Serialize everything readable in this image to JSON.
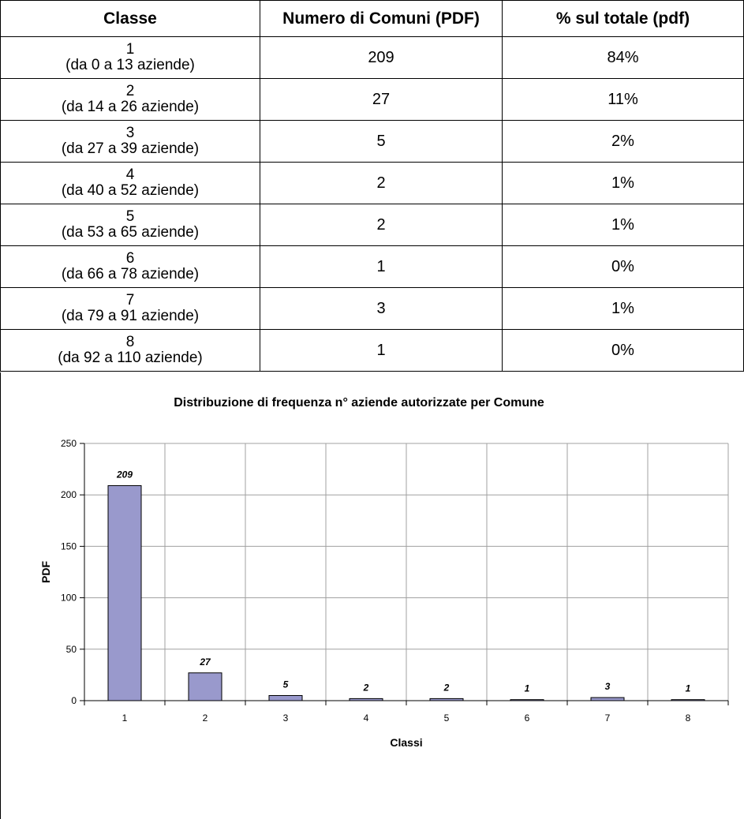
{
  "table": {
    "headers": [
      "Classe",
      "Numero di Comuni (PDF)",
      "% sul totale (pdf)"
    ],
    "rows": [
      {
        "classe": "1",
        "range": "(da 0 a 13 aziende)",
        "count": "209",
        "pct": "84%"
      },
      {
        "classe": "2",
        "range": "(da 14 a 26 aziende)",
        "count": "27",
        "pct": "11%"
      },
      {
        "classe": "3",
        "range": "(da 27 a 39 aziende)",
        "count": "5",
        "pct": "2%"
      },
      {
        "classe": "4",
        "range": "(da 40 a 52 aziende)",
        "count": "2",
        "pct": "1%"
      },
      {
        "classe": "5",
        "range": "(da 53 a 65 aziende)",
        "count": "2",
        "pct": "1%"
      },
      {
        "classe": "6",
        "range": "(da 66 a 78 aziende)",
        "count": "1",
        "pct": "0%"
      },
      {
        "classe": "7",
        "range": "(da 79 a 91 aziende)",
        "count": "3",
        "pct": "1%"
      },
      {
        "classe": "8",
        "range": "(da 92 a 110 aziende)",
        "count": "1",
        "pct": "0%"
      }
    ]
  },
  "chart_data": {
    "type": "bar",
    "title": "Distribuzione di frequenza n° aziende autorizzate per Comune",
    "xlabel": "Classi",
    "ylabel": "PDF",
    "categories": [
      "1",
      "2",
      "3",
      "4",
      "5",
      "6",
      "7",
      "8"
    ],
    "values": [
      209,
      27,
      5,
      2,
      2,
      1,
      3,
      1
    ],
    "ylim": [
      0,
      250
    ],
    "yticks": [
      0,
      50,
      100,
      150,
      200,
      250
    ],
    "grid": true,
    "data_labels": true,
    "colors": {
      "bar": "#9999cc",
      "bar_edge": "#000000",
      "grid": "#a0a0a0"
    }
  }
}
